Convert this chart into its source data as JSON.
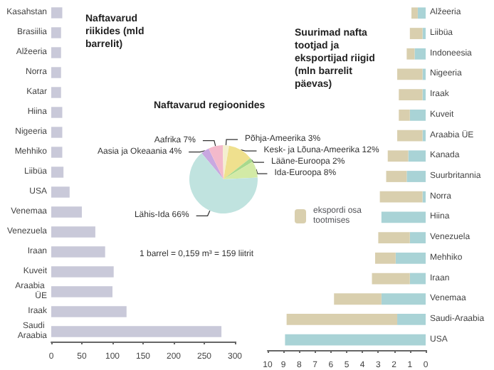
{
  "chart_data": [
    {
      "type": "bar",
      "orientation": "horizontal",
      "title": "Naftavarud riikides (mld barrelit)",
      "categories": [
        "Kasahstan",
        "Brasiilia",
        "Alžeeria",
        "Norra",
        "Katar",
        "Hiina",
        "Nigeeria",
        "Mehhiko",
        "Liibüa",
        "USA",
        "Venemaa",
        "Venezuela",
        "Iraan",
        "Kuveit",
        "Araabia ÜE",
        "Iraak",
        "Saudi Araabia"
      ],
      "values": [
        18,
        16,
        16,
        16,
        16,
        18,
        18,
        18,
        20,
        30,
        50,
        72,
        88,
        102,
        100,
        123,
        278
      ],
      "color": "#c9c9d9",
      "xlim": [
        0,
        300
      ],
      "xticks": [
        0,
        50,
        100,
        150,
        200,
        250,
        300
      ],
      "grid": false,
      "annotations": [
        "1 barrel = 0,159 m³ = 159 liitrit"
      ]
    },
    {
      "type": "pie",
      "title": "Naftavarud regioonides",
      "categories": [
        "Aasia ja Okeaania",
        "Aafrika",
        "Põhja-Ameerika",
        "Kesk- ja Lõuna-Ameerika",
        "Lääne-Euroopa",
        "Ida-Euroopa",
        "Lähis-Ida"
      ],
      "values": [
        4,
        7,
        3,
        12,
        2,
        8,
        66
      ],
      "colors": [
        "#c8a8e0",
        "#f3b9cb",
        "#f4efcf",
        "#efe08e",
        "#a8d98c",
        "#d3eaa6",
        "#c0e3df"
      ],
      "value_labels": [
        "4%",
        "7%",
        "3%",
        "12%",
        "2%",
        "8%",
        "66%"
      ]
    },
    {
      "type": "bar",
      "orientation": "horizontal",
      "stacked": true,
      "title": "Suurimad nafta tootjad ja eksportijad riigid (mln barrelit päevas)",
      "categories": [
        "Alžeeria",
        "Liibüa",
        "Indoneesia",
        "Nigeeria",
        "Iraak",
        "Kuveit",
        "Araabia ÜE",
        "Kanada",
        "Suurbritannia",
        "Norra",
        "Hiina",
        "Venezuela",
        "Mehhiko",
        "Iraan",
        "Venemaa",
        "Saudi-Araabia",
        "USA"
      ],
      "series": [
        {
          "color": "#a9d3d6",
          "values": [
            0.5,
            0.2,
            0.7,
            0.2,
            0.2,
            1.0,
            0.2,
            1.1,
            1.2,
            0.2,
            2.8,
            1.0,
            1.9,
            1.0,
            2.8,
            1.8,
            8.9
          ]
        },
        {
          "name": "ekspordi osa tootmises",
          "color": "#d9cfae",
          "values": [
            0.4,
            0.8,
            0.5,
            1.6,
            1.5,
            0.7,
            1.6,
            1.3,
            1.3,
            2.7,
            0.0,
            2.0,
            1.3,
            2.4,
            3.0,
            7.0,
            0.0
          ]
        }
      ],
      "xlim": [
        10,
        0
      ],
      "xticks": [
        10,
        9,
        8,
        7,
        6,
        5,
        4,
        3,
        2,
        1,
        0
      ],
      "grid": false,
      "legend": "left"
    }
  ]
}
